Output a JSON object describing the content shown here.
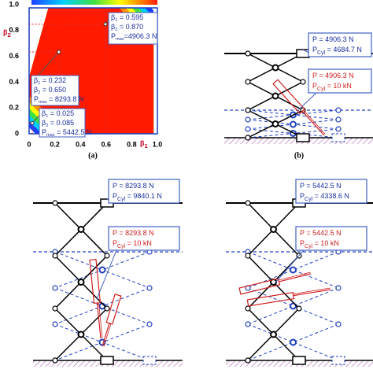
{
  "panel_a": {
    "caption": "(a)",
    "y_axis": {
      "symbol": "β",
      "sub": "2",
      "ticks": [
        "1.0",
        "0.8",
        "0.6",
        "0.4",
        "0.2",
        "0"
      ]
    },
    "x_axis": {
      "symbol": "β",
      "sub": "1",
      "ticks": [
        "0",
        "0.2",
        "0.4",
        "0.6",
        "0.8",
        "1.0"
      ]
    },
    "annotations": [
      {
        "lines": [
          {
            "symbol": "β",
            "sub": "1",
            "value": " = 0.595"
          },
          {
            "symbol": "β",
            "sub": "2",
            "value": " = 0.870"
          },
          {
            "symbol": "P",
            "sub": "max",
            "value": "=4906.3 N"
          }
        ]
      },
      {
        "lines": [
          {
            "symbol": "β",
            "sub": "1",
            "value": " = 0.232"
          },
          {
            "symbol": "β",
            "sub": "2",
            "value": " = 0.650"
          },
          {
            "symbol": "P",
            "sub": "max",
            "value": " = 8293.8 N"
          }
        ]
      },
      {
        "lines": [
          {
            "symbol": "β",
            "sub": "1",
            "value": " = 0.025"
          },
          {
            "symbol": "β",
            "sub": "2",
            "value": " = 0.085"
          },
          {
            "symbol": "P",
            "sub": "max",
            "value": " = 5442.5 N"
          }
        ]
      }
    ]
  },
  "panel_b": {
    "caption": "(b)",
    "top_box": [
      {
        "symbol": "P",
        "value": "    = 4906.3 N"
      },
      {
        "symbol": "P",
        "sub": "Cyl",
        "value": " = 4684.7 N"
      }
    ],
    "cylinder_box": [
      {
        "symbol": "P",
        "value": "    = 4906.3 N"
      },
      {
        "symbol": "P",
        "sub": "Cyl",
        "value": " = 10 kN"
      }
    ]
  },
  "panel_c": {
    "top_box": [
      {
        "symbol": "P",
        "value": "    = 8293.8 N"
      },
      {
        "symbol": "P",
        "sub": "Cyl",
        "value": " = 9840.1 N"
      }
    ],
    "cylinder_box": [
      {
        "symbol": "P",
        "value": "    = 8293.8 N"
      },
      {
        "symbol": "P",
        "sub": "Cyl",
        "value": " = 10 kN"
      }
    ]
  },
  "panel_d": {
    "top_box": [
      {
        "symbol": "P",
        "value": "    = 5442.5 N"
      },
      {
        "symbol": "P",
        "sub": "Cyl",
        "value": " = 4338.6 N"
      }
    ],
    "cylinder_box": [
      {
        "symbol": "P",
        "value": "    = 5442.5 N"
      },
      {
        "symbol": "P",
        "sub": "Cyl",
        "value": " = 10 kN"
      }
    ]
  }
}
